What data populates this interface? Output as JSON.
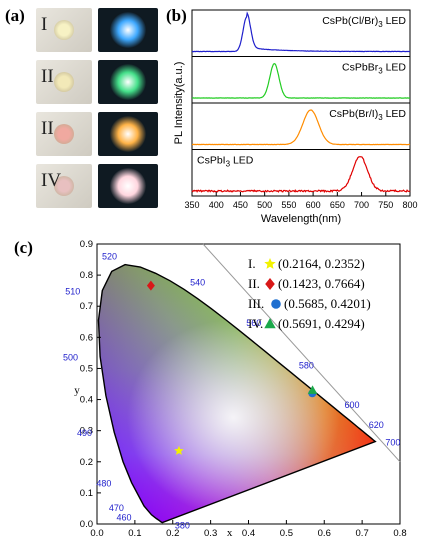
{
  "panel_labels": {
    "a": "(a)",
    "b": "(b)",
    "c": "(c)"
  },
  "panel_a": {
    "rows": [
      {
        "roman": "I",
        "glow": "#3fa9ff"
      },
      {
        "roman": "II",
        "glow": "#45e08a"
      },
      {
        "roman": "II",
        "glow": "#ffb347"
      },
      {
        "roman": "IV",
        "glow": "#ffd6df"
      }
    ]
  },
  "chart_data": [
    {
      "type": "line",
      "ylabel": "PL Intensity(a.u.)",
      "xlabel": "Wavelength(nm)",
      "xlim": [
        350,
        800
      ],
      "x_ticks": [
        "350",
        "400",
        "450",
        "500",
        "550",
        "600",
        "650",
        "700",
        "750",
        "800"
      ],
      "series": [
        {
          "name": "CsPb(Cl/Br)3 LED",
          "color": "#1f1fcc",
          "peak": 463,
          "fwhm": 18
        },
        {
          "name": "CsPbBr3 LED",
          "color": "#22cc22",
          "peak": 520,
          "fwhm": 22
        },
        {
          "name": "CsPb(Br/I)3 LED",
          "color": "#ff8c00",
          "peak": 595,
          "fwhm": 38
        },
        {
          "name": "CsPbI3 LED",
          "color": "#e00000",
          "peak": 697,
          "fwhm": 36
        }
      ]
    },
    {
      "type": "scatter",
      "xlabel": "x",
      "ylabel": "y",
      "xlim": [
        0.0,
        0.8
      ],
      "ylim": [
        0.0,
        0.9
      ],
      "x_ticks": [
        "0.0",
        "0.1",
        "0.2",
        "0.3",
        "0.4",
        "0.5",
        "0.6",
        "0.7",
        "0.8"
      ],
      "y_ticks": [
        "0.0",
        "0.1",
        "0.2",
        "0.3",
        "0.4",
        "0.5",
        "0.6",
        "0.7",
        "0.8",
        "0.9"
      ],
      "wavelength_labels": [
        "380",
        "460",
        "470",
        "480",
        "490",
        "500",
        "510",
        "520",
        "540",
        "560",
        "580",
        "600",
        "620",
        "700"
      ],
      "points": [
        {
          "label": "I.",
          "coords": "(0.2164, 0.2352)",
          "x": 0.2164,
          "y": 0.2352,
          "marker": "star",
          "color": "#f2f200"
        },
        {
          "label": "II.",
          "coords": "(0.1423, 0.7664)",
          "x": 0.1423,
          "y": 0.7664,
          "marker": "diamond",
          "color": "#d81818"
        },
        {
          "label": "III.",
          "coords": "(0.5685, 0.4201)",
          "x": 0.5685,
          "y": 0.4201,
          "marker": "circle",
          "color": "#1f6fd0"
        },
        {
          "label": "IV.",
          "coords": "(0.5691, 0.4294)",
          "x": 0.5691,
          "y": 0.4294,
          "marker": "triangle",
          "color": "#1aa84a"
        }
      ]
    }
  ]
}
